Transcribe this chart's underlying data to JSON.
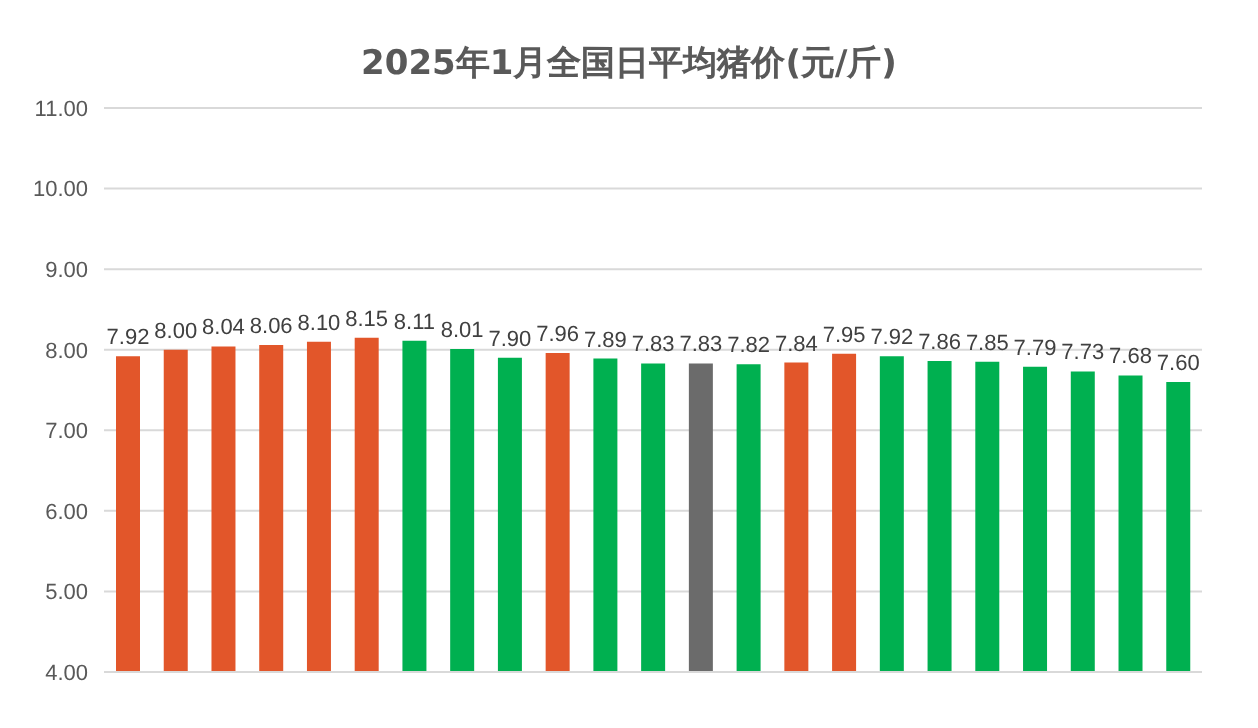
{
  "chart_data": {
    "type": "bar",
    "title": "2025年1月全国日平均猪价(元/斤)",
    "categories": [
      null,
      null,
      null,
      null,
      null,
      null,
      null,
      null,
      null,
      null,
      null,
      null,
      null,
      null,
      null,
      null,
      null,
      null,
      null,
      null,
      null,
      null,
      null
    ],
    "values": [
      7.92,
      8.0,
      8.04,
      8.06,
      8.1,
      8.15,
      8.11,
      8.01,
      7.9,
      7.96,
      7.89,
      7.83,
      7.83,
      7.82,
      7.84,
      7.95,
      7.92,
      7.86,
      7.85,
      7.79,
      7.73,
      7.68,
      7.6
    ],
    "value_labels": [
      "7.92",
      "8.00",
      "8.04",
      "8.06",
      "8.10",
      "8.15",
      "8.11",
      "8.01",
      "7.90",
      "7.96",
      "7.89",
      "7.83",
      "7.83",
      "7.82",
      "7.84",
      "7.95",
      "7.92",
      "7.86",
      "7.85",
      "7.79",
      "7.73",
      "7.68",
      "7.60"
    ],
    "colors": [
      "#e2562a",
      "#e2562a",
      "#e2562a",
      "#e2562a",
      "#e2562a",
      "#e2562a",
      "#00b050",
      "#00b050",
      "#00b050",
      "#e2562a",
      "#00b050",
      "#00b050",
      "#6b6b6b",
      "#00b050",
      "#e2562a",
      "#e2562a",
      "#00b050",
      "#00b050",
      "#00b050",
      "#00b050",
      "#00b050",
      "#00b050",
      "#00b050"
    ],
    "ylim": [
      4,
      11
    ],
    "yticks": [
      {
        "value": 4,
        "label": "4.00"
      },
      {
        "value": 5,
        "label": "5.00"
      },
      {
        "value": 6,
        "label": "6.00"
      },
      {
        "value": 7,
        "label": "7.00"
      },
      {
        "value": 8,
        "label": "8.00"
      },
      {
        "value": 9,
        "label": "9.00"
      },
      {
        "value": 10,
        "label": "10.00"
      },
      {
        "value": 11,
        "label": "11.00"
      }
    ],
    "grid": "y"
  }
}
